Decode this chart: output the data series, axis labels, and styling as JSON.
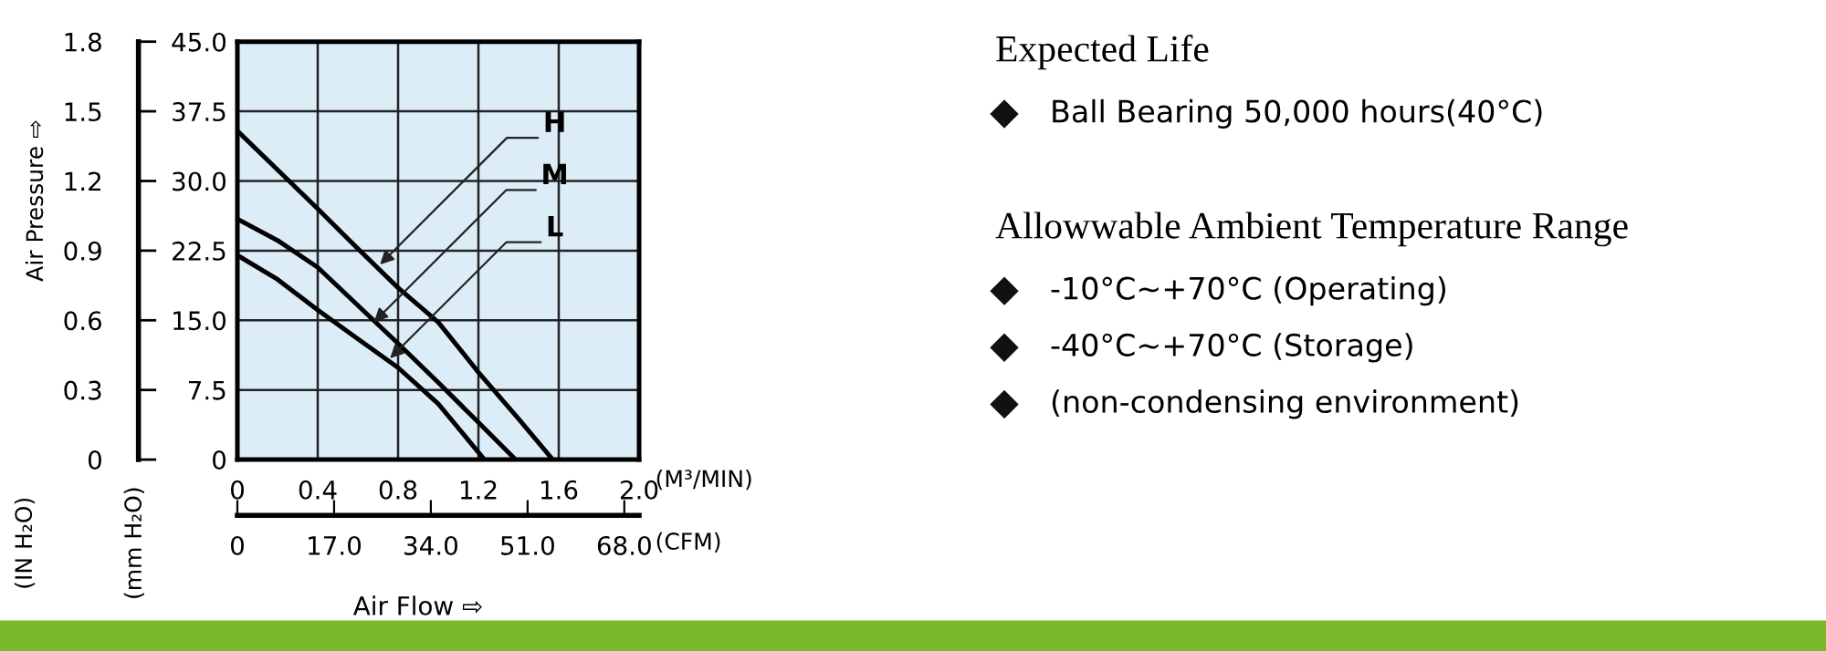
{
  "chart_data": [
    {
      "type": "line",
      "xlabel": "(M³/MIN)",
      "y2label": "(IN H₂O)",
      "x2label": "(CFM)",
      "series": [
        {
          "color": "#000000",
          "x": [
            0,
            0.2,
            0.4,
            0.6,
            0.8,
            1.0,
            1.2,
            1.4,
            1.57
          ],
          "values": [
            35.4,
            31.2,
            27.0,
            22.7,
            18.5,
            14.8,
            9.4,
            4.4,
            0
          ]
        },
        {
          "color": "#000000",
          "x": [
            0,
            0.2,
            0.4,
            0.6,
            0.8,
            1.0,
            1.2,
            1.385
          ],
          "values": [
            25.9,
            23.6,
            20.7,
            16.6,
            12.5,
            8.3,
            4.0,
            0
          ]
        },
        {
          "color": "#000000",
          "x": [
            0,
            0.2,
            0.4,
            0.6,
            0.8,
            1.0,
            1.23
          ],
          "values": [
            22.0,
            19.4,
            16.1,
            13.0,
            9.9,
            6.0,
            0
          ]
        }
      ],
      "xlim": [
        0,
        2.0
      ],
      "xticks": [
        0,
        0.4,
        0.8,
        1.2,
        1.6,
        {
          "value": 2,
          "label": "2.0"
        }
      ],
      "ylim": [
        0,
        45.0
      ],
      "yticks": [
        0,
        7.5,
        {
          "value": 15,
          "label": "15.0"
        },
        22.5,
        {
          "value": 30,
          "label": "30.0"
        },
        37.5,
        {
          "value": 45,
          "label": "45.0"
        }
      ],
      "y2lim": [
        0,
        1.8
      ],
      "y2ticks": [
        0,
        0.3,
        0.6,
        0.9,
        1.2,
        1.5,
        1.8
      ],
      "x2lim": [
        0,
        70.6
      ],
      "x2ticks": [
        0,
        {
          "value": 17,
          "label": "17.0"
        },
        {
          "value": 34,
          "label": "34.0"
        },
        {
          "value": 51,
          "label": "51.0"
        },
        {
          "value": 68,
          "label": "68.0"
        }
      ],
      "grid": true,
      "marker": "none",
      "line_style": "solid",
      "legend": false,
      "annotations": [
        {
          "text": "H",
          "x": 0.71,
          "y": 21.0
        },
        {
          "text": "M",
          "x": 0.68,
          "y": 14.8
        },
        {
          "text": "L",
          "x": 0.76,
          "y": 10.9
        },
        "Air Flow ⇨",
        "Air Pressure ⇨",
        "(mm H₂O)"
      ]
    },
    {
      "type": "other",
      "annotations": [
        "Expected Life",
        "Ball Bearing 50,000 hours(40°C)",
        "Allowwable Ambient Temperature Range",
        "-10°C~+70°C (Operating)",
        "-40°C~+70°C (Storage)",
        "(non-condensing environment)"
      ]
    }
  ]
}
